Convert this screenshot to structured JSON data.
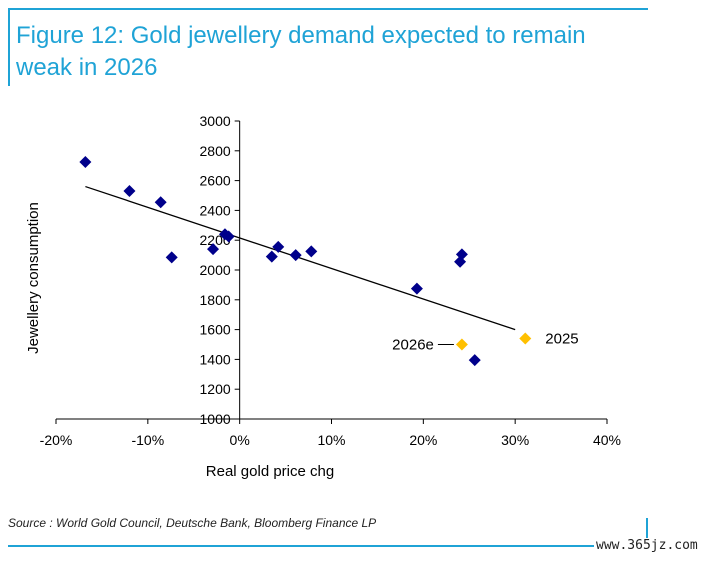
{
  "figure": {
    "title": "Figure 12: Gold jewellery demand expected to remain weak in 2026",
    "source": "Source : World Gold Council, Deutsche Bank, Bloomberg Finance LP",
    "watermark": "www.365jz.com"
  },
  "colors": {
    "accent": "#1fa3d6",
    "historic_marker": "#00008b",
    "forecast_marker": "#ffc000",
    "trendline": "#000000"
  },
  "chart_data": {
    "type": "scatter",
    "xlabel": "Real gold price chg",
    "ylabel": "Jewellery consumption",
    "xlim": [
      -0.2,
      0.4
    ],
    "ylim": [
      1000,
      3000
    ],
    "x_ticks": [
      -0.2,
      -0.1,
      0.0,
      0.1,
      0.2,
      0.3,
      0.4
    ],
    "x_tick_labels": [
      "-20%",
      "-10%",
      "0%",
      "10%",
      "20%",
      "30%",
      "40%"
    ],
    "y_ticks": [
      1000,
      1200,
      1400,
      1600,
      1800,
      2000,
      2200,
      2400,
      2600,
      2800,
      3000
    ],
    "y_tick_labels": [
      "1000",
      "1200",
      "1400",
      "1600",
      "1800",
      "2000",
      "2200",
      "2400",
      "2600",
      "2800",
      "3000"
    ],
    "grid": false,
    "legend": "none",
    "series": [
      {
        "marker": "diamond",
        "color": "#00008b",
        "points": [
          {
            "x": -0.168,
            "y": 2725
          },
          {
            "x": -0.12,
            "y": 2530
          },
          {
            "x": -0.086,
            "y": 2455
          },
          {
            "x": -0.074,
            "y": 2085
          },
          {
            "x": -0.029,
            "y": 2140
          },
          {
            "x": -0.016,
            "y": 2240
          },
          {
            "x": -0.012,
            "y": 2225
          },
          {
            "x": 0.035,
            "y": 2090
          },
          {
            "x": 0.042,
            "y": 2155
          },
          {
            "x": 0.061,
            "y": 2100
          },
          {
            "x": 0.078,
            "y": 2125
          },
          {
            "x": 0.193,
            "y": 1875
          },
          {
            "x": 0.24,
            "y": 2055
          },
          {
            "x": 0.242,
            "y": 2105
          },
          {
            "x": 0.256,
            "y": 1395
          }
        ]
      },
      {
        "marker": "diamond",
        "color": "#ffc000",
        "points": [
          {
            "x": 0.242,
            "y": 1500,
            "label": "2026e"
          },
          {
            "x": 0.311,
            "y": 1540,
            "label": "2025"
          }
        ]
      }
    ],
    "trendline": {
      "x": [
        -0.168,
        0.3
      ],
      "y": [
        2560,
        1600
      ]
    }
  }
}
